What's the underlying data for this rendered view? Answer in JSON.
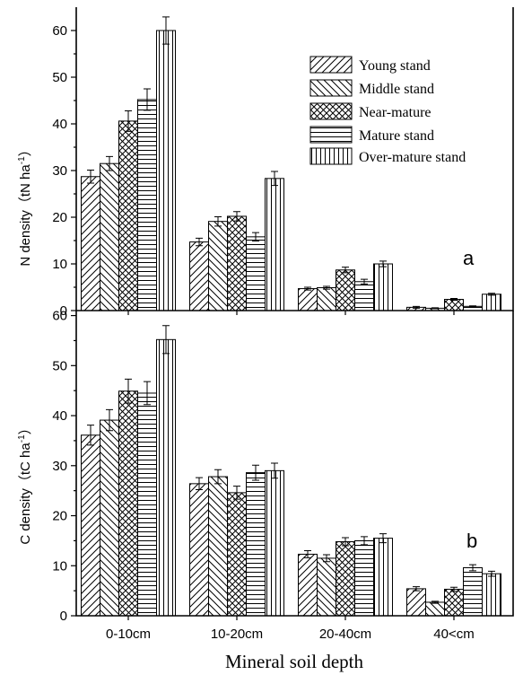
{
  "xlabel": "Mineral  soil depth",
  "categories": [
    "0-10cm",
    "10-20cm",
    "20-40cm",
    "40<cm"
  ],
  "series_names": [
    "Young stand",
    "Middle stand",
    "Near-mature",
    "Mature stand",
    "Over-mature stand"
  ],
  "chart_data": [
    {
      "type": "bar",
      "panel_label": "a",
      "ylabel_main": "N density（tN ha",
      "ylabel_sup": "-1",
      "ylabel_close": "）",
      "ylim": [
        0,
        65
      ],
      "yticks": [
        0,
        10,
        20,
        30,
        40,
        50,
        60
      ],
      "legend_position": "top-right",
      "series": [
        {
          "name": "Young stand",
          "pattern": "diag-right",
          "values": [
            28.7,
            14.7,
            4.7,
            0.7
          ],
          "errors": [
            1.4,
            0.8,
            0.3,
            0.2
          ]
        },
        {
          "name": "Middle stand",
          "pattern": "diag-left",
          "values": [
            31.5,
            19.1,
            4.9,
            0.5
          ],
          "errors": [
            1.5,
            1.0,
            0.3,
            0.1
          ]
        },
        {
          "name": "Near-mature",
          "pattern": "cross",
          "values": [
            40.6,
            20.2,
            8.7,
            2.4
          ],
          "errors": [
            2.2,
            1.0,
            0.6,
            0.2
          ]
        },
        {
          "name": "Mature stand",
          "pattern": "horizontal",
          "values": [
            45.2,
            15.8,
            6.2,
            0.9
          ],
          "errors": [
            2.3,
            0.9,
            0.5,
            0.1
          ]
        },
        {
          "name": "Over-mature stand",
          "pattern": "vertical",
          "values": [
            60.0,
            28.3,
            10.0,
            3.5
          ],
          "errors": [
            2.9,
            1.5,
            0.6,
            0.2
          ]
        }
      ]
    },
    {
      "type": "bar",
      "panel_label": "b",
      "ylabel_main": "C density（tC ha",
      "ylabel_sup": "-1",
      "ylabel_close": "）",
      "ylim": [
        0,
        61
      ],
      "yticks": [
        0,
        10,
        20,
        30,
        40,
        50,
        60
      ],
      "series": [
        {
          "name": "Young stand",
          "pattern": "diag-right",
          "values": [
            36.1,
            26.4,
            12.3,
            5.4
          ],
          "errors": [
            2.0,
            1.2,
            0.7,
            0.4
          ]
        },
        {
          "name": "Middle stand",
          "pattern": "diag-left",
          "values": [
            39.1,
            27.8,
            11.5,
            2.7
          ],
          "errors": [
            2.1,
            1.4,
            0.7,
            0.2
          ]
        },
        {
          "name": "Near-mature",
          "pattern": "cross",
          "values": [
            44.9,
            24.6,
            14.8,
            5.3
          ],
          "errors": [
            2.4,
            1.3,
            0.8,
            0.4
          ]
        },
        {
          "name": "Mature stand",
          "pattern": "horizontal",
          "values": [
            44.5,
            28.6,
            15.0,
            9.6
          ],
          "errors": [
            2.3,
            1.5,
            0.8,
            0.6
          ]
        },
        {
          "name": "Over-mature stand",
          "pattern": "vertical",
          "values": [
            55.2,
            29.0,
            15.5,
            8.4
          ],
          "errors": [
            2.8,
            1.5,
            0.9,
            0.5
          ]
        }
      ]
    }
  ]
}
